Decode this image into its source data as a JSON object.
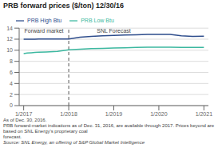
{
  "chart_data": {
    "type": "line",
    "title": "PRB forward prices ($/ton) 12/30/16",
    "x": [
      0,
      0.08,
      0.17,
      0.25,
      0.33,
      0.5,
      0.75,
      1.0,
      1.25,
      1.5,
      1.75,
      2.0,
      2.25,
      2.5,
      2.75,
      3.0,
      3.25,
      3.5,
      3.75,
      4.0
    ],
    "series": [
      {
        "name": "PRB High Btu",
        "color": "#2e4d8c",
        "values": [
          12.0,
          12.0,
          12.0,
          12.0,
          12.05,
          12.05,
          12.05,
          12.05,
          12.35,
          12.5,
          12.6,
          12.7,
          12.75,
          12.8,
          12.85,
          12.85,
          12.85,
          12.6,
          12.5,
          12.55
        ]
      },
      {
        "name": "PRB Low Btu",
        "color": "#3cb8a0",
        "values": [
          9.4,
          9.5,
          9.55,
          9.6,
          9.65,
          9.7,
          9.8,
          10.1,
          10.2,
          10.3,
          10.35,
          10.4,
          10.45,
          10.5,
          10.55,
          10.55,
          10.55,
          10.5,
          10.5,
          10.5
        ]
      }
    ],
    "xlim": [
      -0.1,
      4.1
    ],
    "xticks": [
      {
        "value": 0,
        "label": "1/2017"
      },
      {
        "value": 1,
        "label": "1/2018"
      },
      {
        "value": 2,
        "label": "1/2019"
      },
      {
        "value": 3,
        "label": "1/2020"
      },
      {
        "value": 4,
        "label": "1/2021"
      }
    ],
    "ylim": [
      0,
      14
    ],
    "yticks": [
      0,
      2,
      4,
      6,
      8,
      10,
      12,
      14
    ],
    "grid": true,
    "legend": "upper left",
    "reference_lines": [
      {
        "x": 1.0,
        "line_style": "dashed"
      }
    ],
    "annotations": [
      {
        "text": "Forward market",
        "x": 0.45,
        "y": 13.2
      },
      {
        "text": "SNL Forecast",
        "x": 2.0,
        "y": 13.2
      }
    ],
    "footnotes": [
      "As of Dec. 30, 2016.",
      "PRB forward-market indications as of Dec. 31, 2016, are available through 2017. Prices beyond are based on SNL Energy's proprietary coal",
      "forecast.",
      "Source: SNL Energy, an offering of S&P Global Market Intelligence"
    ]
  }
}
